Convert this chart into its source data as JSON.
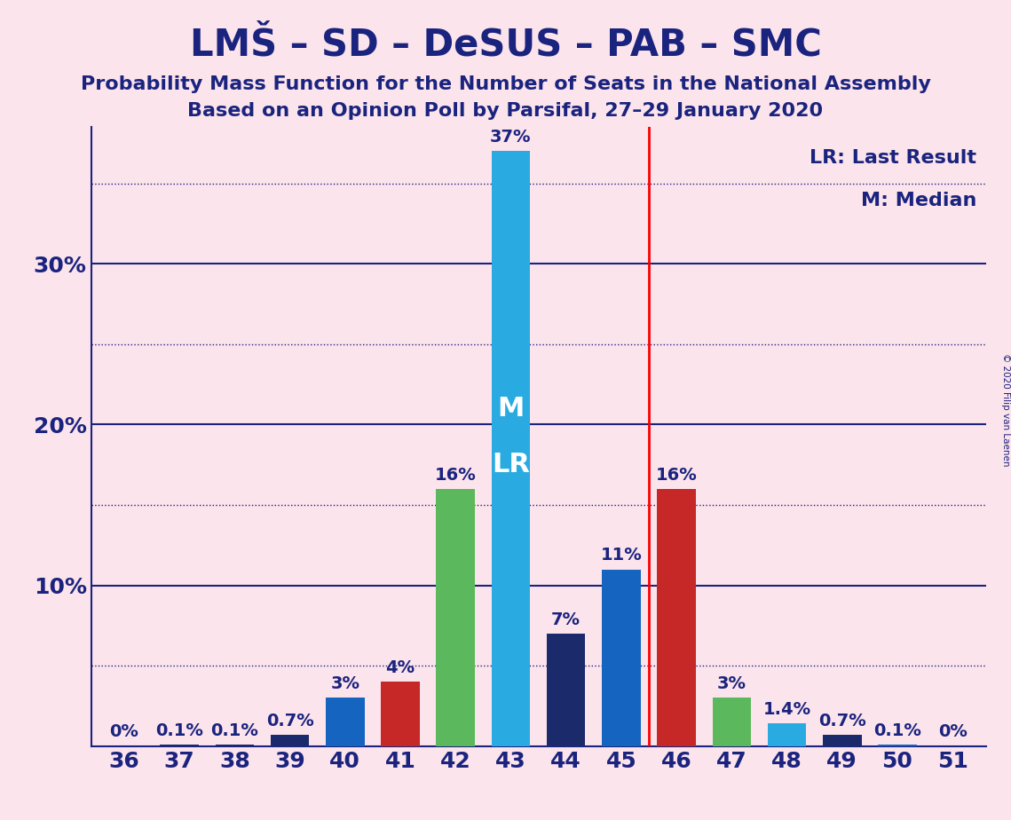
{
  "title": "LMŠ – SD – DeSUS – PAB – SMC",
  "subtitle1": "Probability Mass Function for the Number of Seats in the National Assembly",
  "subtitle2": "Based on an Opinion Poll by Parsifal, 27–29 January 2020",
  "copyright": "© 2020 Filip van Laenen",
  "seats": [
    36,
    37,
    38,
    39,
    40,
    41,
    42,
    43,
    44,
    45,
    46,
    47,
    48,
    49,
    50,
    51
  ],
  "values": [
    0.0,
    0.1,
    0.1,
    0.7,
    3.0,
    4.0,
    16.0,
    37.0,
    7.0,
    11.0,
    16.0,
    3.0,
    1.4,
    0.7,
    0.1,
    0.0
  ],
  "bar_labels": [
    "0%",
    "0.1%",
    "0.1%",
    "0.7%",
    "3%",
    "4%",
    "16%",
    "37%",
    "7%",
    "11%",
    "16%",
    "3%",
    "1.4%",
    "0.7%",
    "0.1%",
    "0%"
  ],
  "bar_colors": [
    "#1b2a6b",
    "#1b2a6b",
    "#1b2a6b",
    "#1b2a6b",
    "#1565c0",
    "#c62828",
    "#5cb85c",
    "#29abe2",
    "#1b2a6b",
    "#1565c0",
    "#c62828",
    "#5cb85c",
    "#29abe2",
    "#1b2a6b",
    "#1565c0",
    "#c62828"
  ],
  "background_color": "#fce4ec",
  "text_color": "#1a237e",
  "lr_seat": 46,
  "median_seat": 43,
  "ylim_max": 38.5,
  "solid_yticks": [
    10,
    20,
    30
  ],
  "dotted_yticks": [
    5,
    15,
    25,
    35
  ],
  "bar_width": 0.7,
  "title_fontsize": 30,
  "subtitle_fontsize": 16,
  "tick_fontsize": 18,
  "bar_label_fontsize": 14,
  "legend_fontsize": 16,
  "inbar_fontsize": 22
}
